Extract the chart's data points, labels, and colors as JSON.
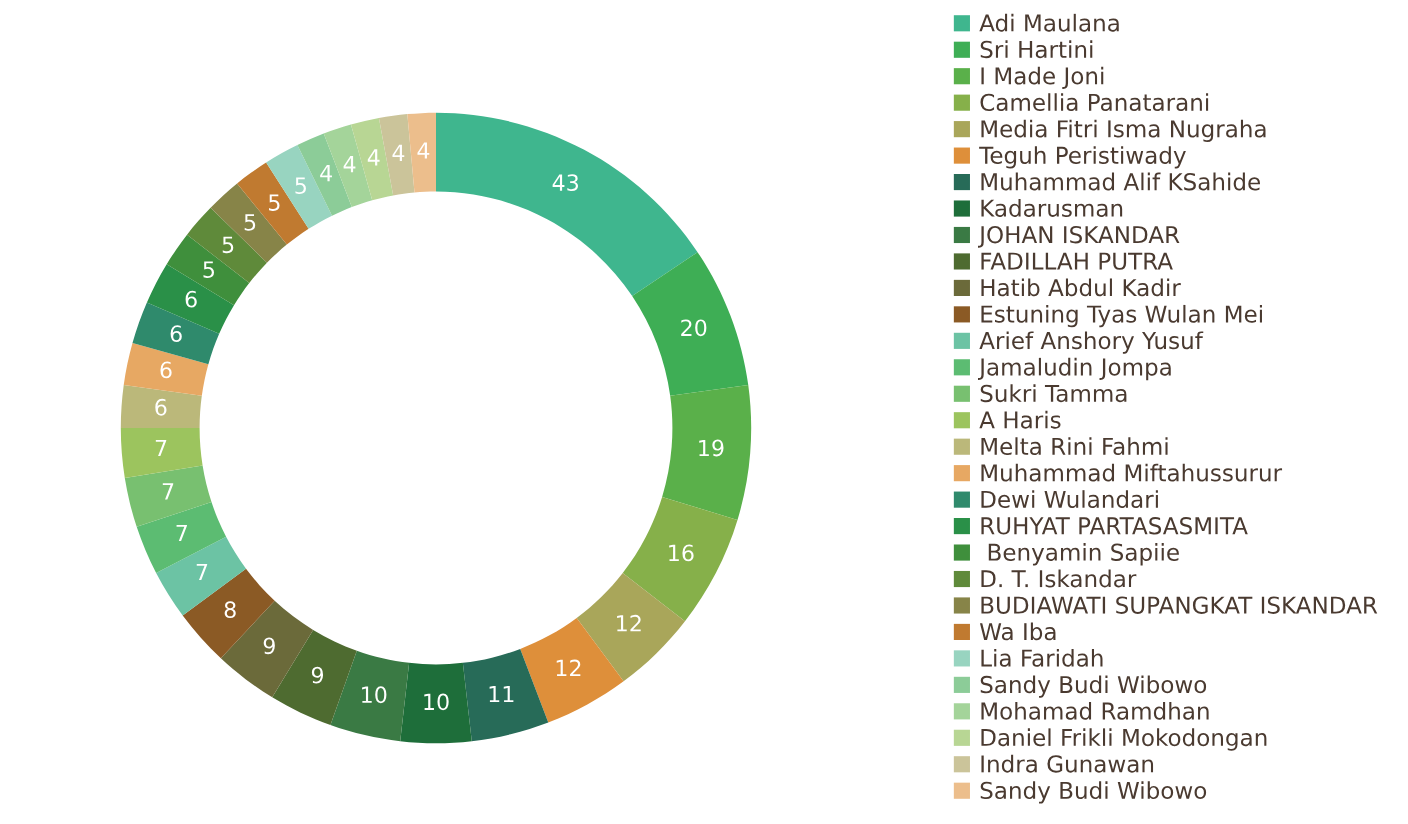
{
  "chart_data": {
    "type": "donut",
    "categories": [
      "Adi Maulana",
      "Sri Hartini",
      "I Made Joni",
      "Camellia Panatarani",
      "Media Fitri Isma Nugraha",
      "Teguh Peristiwady",
      "Muhammad Alif KSahide",
      "Kadarusman",
      "JOHAN ISKANDAR",
      "FADILLAH PUTRA",
      "Hatib Abdul Kadir",
      "Estuning Tyas Wulan Mei",
      "Arief Anshory Yusuf",
      "Jamaludin Jompa",
      "Sukri Tamma",
      "A Haris",
      "Melta Rini Fahmi",
      "Muhammad Miftahussurur",
      "Dewi Wulandari",
      "RUHYAT PARTASASMITA",
      " Benyamin Sapiie",
      "D. T. Iskandar",
      "BUDIAWATI SUPANGKAT ISKANDAR",
      "Wa Iba",
      "Lia Faridah",
      "Sandy Budi Wibowo",
      "Mohamad Ramdhan",
      "Daniel Frikli Mokodongan",
      "Indra Gunawan",
      "Sandy Budi Wibowo"
    ],
    "values": [
      43,
      20,
      19,
      16,
      12,
      12,
      11,
      10,
      10,
      9,
      9,
      8,
      7,
      7,
      7,
      7,
      6,
      6,
      6,
      6,
      5,
      5,
      5,
      5,
      5,
      4,
      4,
      4,
      4,
      4
    ],
    "colors": [
      "#3fb68e",
      "#3eae55",
      "#5ab04a",
      "#86b04a",
      "#a9a65a",
      "#de8f3a",
      "#276b58",
      "#1e6e3a",
      "#3a7a44",
      "#4e6b30",
      "#6b6a3a",
      "#8b5a25",
      "#6cc3a4",
      "#5cbc72",
      "#78c070",
      "#9cc45e",
      "#bbb87a",
      "#e7a863",
      "#2f8a6c",
      "#2a9048",
      "#3f8f3c",
      "#5f8a3a",
      "#878448",
      "#c07a30",
      "#98d4c0",
      "#8ccc98",
      "#a4d49a",
      "#b8d694",
      "#cbc49a",
      "#ecbe8c"
    ],
    "data_labels": true,
    "legend": "right"
  }
}
